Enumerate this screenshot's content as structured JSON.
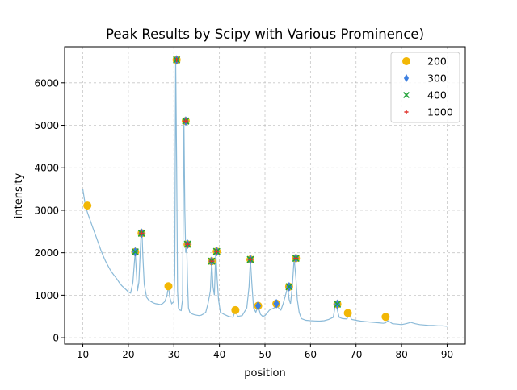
{
  "chart_data": {
    "type": "scatter",
    "title": "Peak Results by Scipy with Various Prominence)",
    "xlabel": "position",
    "ylabel": "intensity",
    "xlim": [
      6,
      94
    ],
    "ylim": [
      -150,
      6850
    ],
    "xticks": [
      10,
      20,
      30,
      40,
      50,
      60,
      70,
      80,
      90
    ],
    "yticks": [
      0,
      1000,
      2000,
      3000,
      4000,
      5000,
      6000
    ],
    "grid": true,
    "legend_position": "top-right",
    "colors": {
      "spectrum": "#8bbad8",
      "p200": "#f2b705",
      "p300": "#3d7fe0",
      "p400": "#22a33a",
      "p1000": "#e0322b"
    },
    "spectrum": {
      "x": [
        10.0,
        10.5,
        11.0,
        11.5,
        12.0,
        12.5,
        13.0,
        13.5,
        14.0,
        14.5,
        15.0,
        15.5,
        16.0,
        16.5,
        17.0,
        17.5,
        18.0,
        18.5,
        19.0,
        19.5,
        20.0,
        20.5,
        21.0,
        21.5,
        22.0,
        22.3,
        22.6,
        22.8,
        23.0,
        23.2,
        23.5,
        24.0,
        24.5,
        25.0,
        25.5,
        26.0,
        26.5,
        27.0,
        27.5,
        28.0,
        28.5,
        28.8,
        29.1,
        29.5,
        30.0,
        30.2,
        30.4,
        30.6,
        30.8,
        31.0,
        31.3,
        31.6,
        31.9,
        32.2,
        32.4,
        32.6,
        32.8,
        33.0,
        33.2,
        33.5,
        34.0,
        34.5,
        35.0,
        35.5,
        36.0,
        36.5,
        37.0,
        37.5,
        38.0,
        38.3,
        38.6,
        38.9,
        39.2,
        39.5,
        39.8,
        40.2,
        41.0,
        42.0,
        43.0,
        43.5,
        44.0,
        45.0,
        46.0,
        46.5,
        46.8,
        47.1,
        47.5,
        48.0,
        48.5,
        49.0,
        49.5,
        50.0,
        51.0,
        52.0,
        52.5,
        53.0,
        53.5,
        54.0,
        54.5,
        55.0,
        55.3,
        55.6,
        56.0,
        56.4,
        56.8,
        57.1,
        57.5,
        58.0,
        59.0,
        60.0,
        61.0,
        62.0,
        63.0,
        64.0,
        65.0,
        65.5,
        65.9,
        66.3,
        67.0,
        68.0,
        68.5,
        69.0,
        70.0,
        71.0,
        72.0,
        73.0,
        74.0,
        75.0,
        76.0,
        76.5,
        77.0,
        78.0,
        79.0,
        80.0,
        81.0,
        82.0,
        83.0,
        84.0,
        85.0,
        86.0,
        87.0,
        88.0,
        89.0,
        90.0
      ],
      "y": [
        3500,
        3150,
        2950,
        2800,
        2650,
        2500,
        2350,
        2200,
        2050,
        1920,
        1800,
        1700,
        1600,
        1520,
        1450,
        1380,
        1300,
        1230,
        1180,
        1130,
        1080,
        1050,
        1300,
        2020,
        1100,
        1300,
        2000,
        2450,
        2470,
        1900,
        1250,
        950,
        880,
        850,
        820,
        800,
        790,
        780,
        800,
        850,
        1000,
        1210,
        950,
        800,
        850,
        1500,
        6540,
        4000,
        1100,
        700,
        650,
        640,
        900,
        5100,
        3000,
        2000,
        2200,
        1300,
        700,
        600,
        560,
        540,
        530,
        520,
        530,
        560,
        600,
        800,
        1100,
        1800,
        1200,
        1000,
        2030,
        1400,
        900,
        600,
        550,
        500,
        480,
        650,
        500,
        520,
        700,
        1200,
        1840,
        1300,
        700,
        600,
        750,
        550,
        500,
        520,
        650,
        700,
        800,
        700,
        650,
        800,
        1000,
        1200,
        900,
        800,
        1200,
        1870,
        1400,
        900,
        600,
        450,
        410,
        400,
        395,
        390,
        400,
        430,
        480,
        790,
        650,
        480,
        450,
        440,
        580,
        430,
        410,
        390,
        380,
        370,
        360,
        350,
        340,
        350,
        400,
        330,
        320,
        310,
        330,
        360,
        330,
        310,
        300,
        290,
        290,
        280,
        280,
        270
      ]
    },
    "series": [
      {
        "name": "200",
        "marker": "circle",
        "x": [
          11.0,
          21.5,
          22.9,
          28.8,
          30.6,
          32.6,
          33.0,
          38.3,
          39.4,
          43.5,
          46.8,
          48.5,
          52.5,
          55.3,
          56.8,
          65.9,
          68.2,
          76.5
        ],
        "y": [
          3110,
          2020,
          2460,
          1210,
          6540,
          5100,
          2200,
          1800,
          2030,
          650,
          1840,
          750,
          800,
          1200,
          1870,
          790,
          580,
          490
        ]
      },
      {
        "name": "300",
        "marker": "diamond",
        "x": [
          21.5,
          22.9,
          30.6,
          32.6,
          33.0,
          38.3,
          39.4,
          46.8,
          48.5,
          52.5,
          55.3,
          56.8,
          65.9
        ],
        "y": [
          2020,
          2460,
          6540,
          5100,
          2200,
          1800,
          2030,
          1840,
          750,
          800,
          1200,
          1870,
          790
        ]
      },
      {
        "name": "400",
        "marker": "x",
        "x": [
          21.5,
          22.9,
          30.6,
          32.6,
          33.0,
          38.3,
          39.4,
          46.8,
          55.3,
          56.8,
          65.9
        ],
        "y": [
          2020,
          2460,
          6540,
          5100,
          2200,
          1800,
          2030,
          1840,
          1200,
          1870,
          790
        ]
      },
      {
        "name": "1000",
        "marker": "plus",
        "x": [
          22.9,
          30.6,
          32.6,
          33.0,
          38.3,
          39.4,
          46.8,
          56.8
        ],
        "y": [
          2460,
          6540,
          5100,
          2200,
          1800,
          2030,
          1840,
          1870
        ]
      }
    ]
  }
}
